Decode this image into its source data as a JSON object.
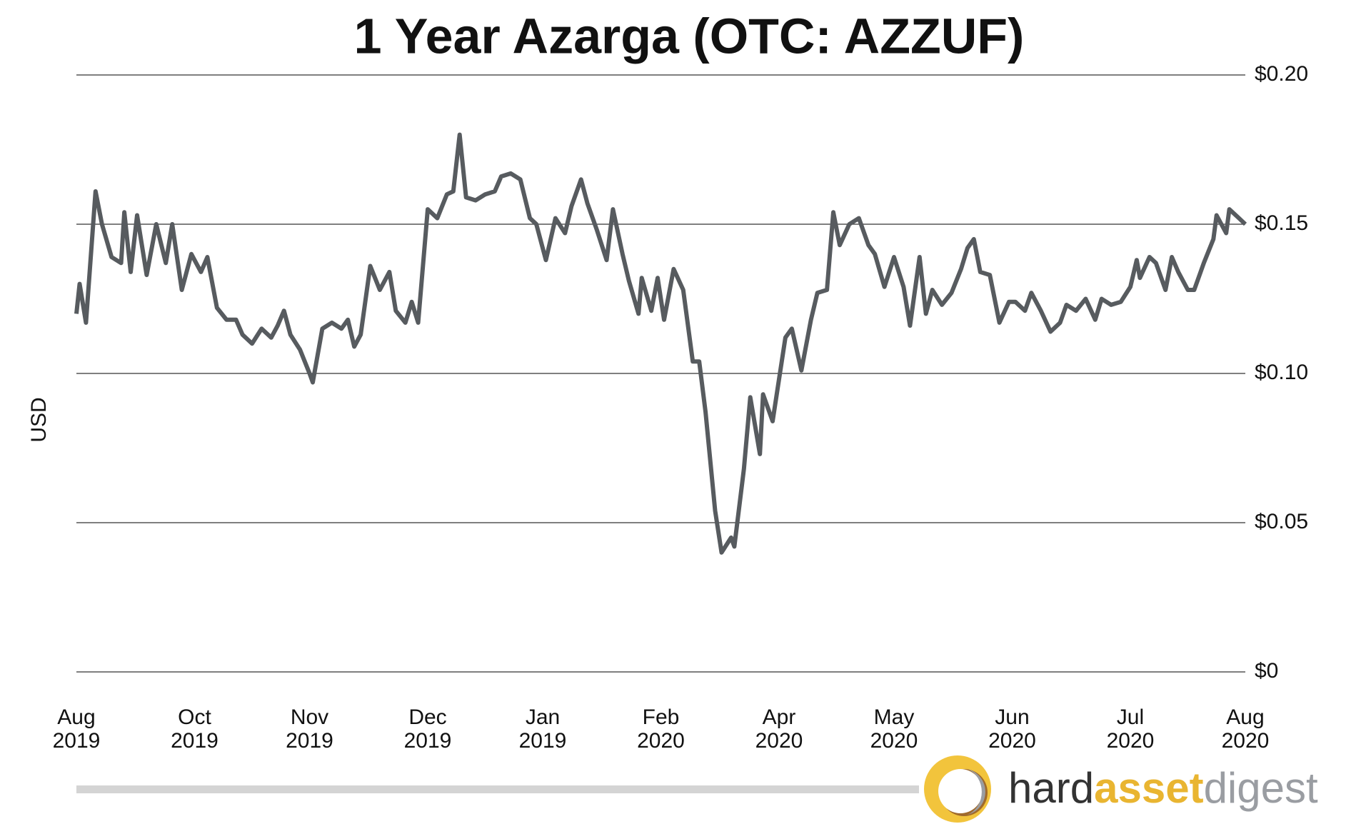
{
  "chart_data": {
    "type": "line",
    "title": "1 Year Azarga (OTC: AZZUF)",
    "y_label": "USD",
    "x": [
      0,
      1,
      3,
      6,
      8,
      11,
      14,
      15,
      17,
      19,
      22,
      25,
      28,
      30,
      33,
      36,
      39,
      41,
      44,
      47,
      50,
      52,
      55,
      58,
      61,
      63,
      65,
      67,
      70,
      73,
      74,
      77,
      80,
      83,
      85,
      87,
      89,
      92,
      95,
      98,
      100,
      103,
      105,
      107,
      110,
      113,
      116,
      118,
      120,
      122,
      125,
      128,
      131,
      133,
      136,
      139,
      142,
      144,
      147,
      150,
      153,
      155,
      158,
      160,
      163,
      166,
      168,
      171,
      173,
      176,
      177,
      180,
      182,
      184,
      187,
      190,
      193,
      195,
      197,
      200,
      202,
      205,
      206,
      209,
      211,
      214,
      215,
      218,
      222,
      224,
      227,
      230,
      232,
      235,
      237,
      239,
      242,
      245,
      248,
      250,
      253,
      256,
      259,
      261,
      264,
      266,
      268,
      271,
      274,
      277,
      279,
      281,
      283,
      286,
      289,
      292,
      294,
      297,
      299,
      302,
      305,
      308,
      310,
      313,
      316,
      319,
      321,
      324,
      327,
      330,
      332,
      333,
      336,
      338,
      341,
      343,
      345,
      348,
      350,
      353,
      356,
      357,
      360,
      361,
      364,
      366
    ],
    "series": [
      {
        "name": "AZZUF",
        "color": "#575b5f",
        "values": [
          0.12,
          0.13,
          0.117,
          0.161,
          0.15,
          0.139,
          0.137,
          0.154,
          0.134,
          0.153,
          0.133,
          0.15,
          0.137,
          0.15,
          0.128,
          0.14,
          0.134,
          0.139,
          0.122,
          0.118,
          0.118,
          0.113,
          0.11,
          0.115,
          0.112,
          0.116,
          0.121,
          0.113,
          0.108,
          0.1,
          0.097,
          0.115,
          0.117,
          0.115,
          0.118,
          0.109,
          0.113,
          0.136,
          0.128,
          0.134,
          0.121,
          0.117,
          0.124,
          0.117,
          0.155,
          0.152,
          0.16,
          0.161,
          0.18,
          0.159,
          0.158,
          0.16,
          0.161,
          0.166,
          0.167,
          0.165,
          0.152,
          0.15,
          0.138,
          0.152,
          0.147,
          0.156,
          0.165,
          0.157,
          0.148,
          0.138,
          0.155,
          0.14,
          0.131,
          0.12,
          0.132,
          0.121,
          0.132,
          0.118,
          0.135,
          0.128,
          0.104,
          0.104,
          0.087,
          0.054,
          0.04,
          0.045,
          0.042,
          0.068,
          0.092,
          0.073,
          0.093,
          0.084,
          0.112,
          0.115,
          0.101,
          0.118,
          0.127,
          0.128,
          0.154,
          0.143,
          0.15,
          0.152,
          0.143,
          0.14,
          0.129,
          0.139,
          0.129,
          0.116,
          0.139,
          0.12,
          0.128,
          0.123,
          0.127,
          0.135,
          0.142,
          0.145,
          0.134,
          0.133,
          0.117,
          0.124,
          0.124,
          0.121,
          0.127,
          0.121,
          0.114,
          0.117,
          0.123,
          0.121,
          0.125,
          0.118,
          0.125,
          0.123,
          0.124,
          0.129,
          0.138,
          0.132,
          0.139,
          0.137,
          0.128,
          0.139,
          0.134,
          0.128,
          0.128,
          0.137,
          0.145,
          0.153,
          0.147,
          0.155,
          0.152,
          0.15
        ]
      }
    ],
    "xlim": [
      0,
      366
    ],
    "xticks": [
      {
        "value": 0,
        "label": "Aug 2019"
      },
      {
        "value": 37,
        "label": "Oct 2019"
      },
      {
        "value": 73,
        "label": "Nov 2019"
      },
      {
        "value": 110,
        "label": "Dec 2019"
      },
      {
        "value": 146,
        "label": "Jan 2019"
      },
      {
        "value": 183,
        "label": "Feb 2020"
      },
      {
        "value": 220,
        "label": "Apr 2020"
      },
      {
        "value": 256,
        "label": "May 2020"
      },
      {
        "value": 293,
        "label": "Jun 2020"
      },
      {
        "value": 330,
        "label": "Jul 2020"
      },
      {
        "value": 366,
        "label": "Aug 2020"
      }
    ],
    "ylim": [
      0,
      0.2
    ],
    "yticks": [
      {
        "value": 0,
        "label": "$0"
      },
      {
        "value": 0.05,
        "label": "$0.05"
      },
      {
        "value": 0.1,
        "label": "$0.10"
      },
      {
        "value": 0.15,
        "label": "$0.15"
      },
      {
        "value": 0.2,
        "label": "$0.20"
      }
    ],
    "grid": true
  },
  "branding": {
    "parts": [
      "hard",
      "asset",
      "digest"
    ]
  }
}
